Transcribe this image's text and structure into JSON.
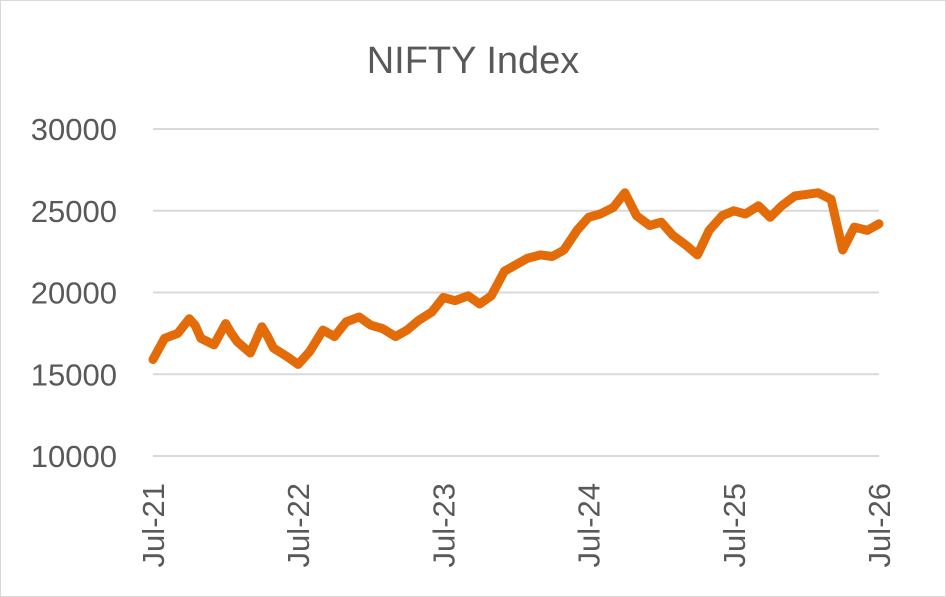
{
  "chart_data": {
    "type": "line",
    "title": "NIFTY Index",
    "xlabel": "",
    "ylabel": "",
    "ylim": [
      10000,
      30000
    ],
    "yticks": [
      "30000",
      "25000",
      "20000",
      "15000",
      "10000"
    ],
    "ytick_values": [
      30000,
      25000,
      20000,
      15000,
      10000
    ],
    "xticks": [
      "Jul-21",
      "Jul-22",
      "Jul-23",
      "Jul-24",
      "Jul-25",
      "Jul-26"
    ],
    "xtick_values": [
      2021.5,
      2022.5,
      2023.5,
      2024.5,
      2025.5,
      2026.5
    ],
    "xlim": [
      2021.5,
      2026.5
    ],
    "grid": true,
    "legend": "none",
    "series": [
      {
        "color": "#e36c09",
        "x": [
          2021.5,
          2021.58,
          2021.67,
          2021.75,
          2021.79,
          2021.83,
          2021.92,
          2022.0,
          2022.04,
          2022.08,
          2022.17,
          2022.25,
          2022.29,
          2022.33,
          2022.42,
          2022.5,
          2022.58,
          2022.67,
          2022.75,
          2022.83,
          2022.92,
          2023.0,
          2023.08,
          2023.17,
          2023.25,
          2023.33,
          2023.42,
          2023.5,
          2023.58,
          2023.67,
          2023.75,
          2023.83,
          2023.92,
          2024.0,
          2024.08,
          2024.17,
          2024.25,
          2024.33,
          2024.42,
          2024.5,
          2024.58,
          2024.67,
          2024.75,
          2024.83,
          2024.92,
          2025.0,
          2025.08,
          2025.17,
          2025.25,
          2025.33,
          2025.42,
          2025.5,
          2025.58,
          2025.67,
          2025.75,
          2025.83,
          2025.92,
          2026.0,
          2026.08,
          2026.17,
          2026.25,
          2026.33,
          2026.42,
          2026.5
        ],
        "y": [
          15900,
          17200,
          17500,
          18400,
          18000,
          17200,
          16800,
          18100,
          17500,
          17000,
          16300,
          17900,
          17300,
          16600,
          16100,
          15600,
          16400,
          17700,
          17300,
          18200,
          18500,
          18000,
          17800,
          17300,
          17700,
          18300,
          18800,
          19700,
          19500,
          19800,
          19300,
          19800,
          21300,
          21700,
          22100,
          22300,
          22200,
          22600,
          23800,
          24600,
          24800,
          25200,
          26100,
          24700,
          24100,
          24300,
          23500,
          22900,
          22300,
          23800,
          24700,
          25000,
          24800,
          25300,
          24600,
          25300,
          25900,
          26000,
          26100,
          25700,
          22600,
          24000,
          23800,
          24200
        ]
      }
    ]
  }
}
